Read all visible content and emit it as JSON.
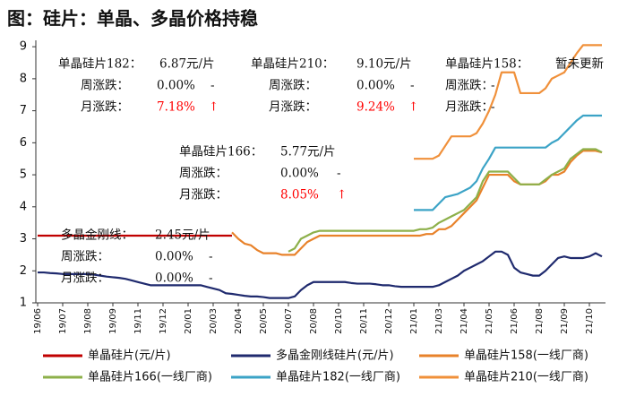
{
  "chart_data": {
    "type": "line",
    "title": "图：硅片：单晶、多晶价格持稳",
    "categories": [
      "19/06",
      null,
      null,
      null,
      "19/07",
      null,
      null,
      null,
      "19/08",
      null,
      null,
      null,
      "19/09",
      null,
      null,
      null,
      "19/11",
      null,
      null,
      null,
      "19/12",
      null,
      null,
      null,
      "20/01",
      null,
      null,
      null,
      "20/03",
      null,
      null,
      null,
      "20/04",
      null,
      null,
      null,
      "20/05",
      null,
      null,
      null,
      "20/07",
      null,
      null,
      null,
      "20/08",
      null,
      null,
      null,
      "20/10",
      null,
      null,
      null,
      "20/11",
      null,
      null,
      null,
      "20/12",
      null,
      null,
      null,
      "21/01",
      null,
      null,
      null,
      "21/03",
      null,
      null,
      null,
      "21/04",
      null,
      null,
      null,
      "21/05",
      null,
      null,
      null,
      "21/06",
      null,
      null,
      null,
      "21/08",
      null,
      null,
      null,
      "21/09",
      null,
      null,
      null,
      "21/10",
      null,
      null
    ],
    "ylim": [
      1,
      9.2
    ],
    "yticks": [
      1,
      2,
      3,
      4,
      5,
      6,
      7,
      8,
      9
    ],
    "series": [
      {
        "name": "单晶硅片(元/片)",
        "color": "#c00000",
        "values": [
          3.1,
          3.1,
          3.1,
          3.1,
          3.1,
          3.1,
          3.1,
          3.1,
          3.1,
          3.1,
          3.1,
          3.1,
          3.1,
          3.1,
          3.1,
          3.1,
          3.1,
          3.1,
          3.1,
          3.1,
          3.1,
          3.1,
          3.1,
          3.1,
          3.1,
          3.1,
          3.1,
          3.1,
          3.1,
          3.1,
          3.1,
          3.1,
          null,
          null,
          null,
          null,
          null,
          null,
          null,
          null,
          null,
          null,
          null,
          null,
          null,
          null,
          null,
          null,
          null,
          null,
          null,
          null,
          null,
          null,
          null,
          null,
          null,
          null,
          null,
          null,
          null,
          null,
          null,
          null,
          null,
          null,
          null,
          null,
          null,
          null,
          null,
          null,
          null,
          null,
          null,
          null,
          null,
          null,
          null,
          null,
          null,
          null,
          null,
          null,
          null,
          null,
          null,
          null,
          null,
          null,
          null
        ]
      },
      {
        "name": "多晶金刚线硅片(元/片)",
        "color": "#1f2a6e",
        "values": [
          1.95,
          1.95,
          1.93,
          1.92,
          1.9,
          1.9,
          1.9,
          1.9,
          1.9,
          1.88,
          1.85,
          1.82,
          1.8,
          1.78,
          1.75,
          1.7,
          1.65,
          1.6,
          1.55,
          1.55,
          1.55,
          1.55,
          1.55,
          1.55,
          1.55,
          1.55,
          1.55,
          1.5,
          1.45,
          1.4,
          1.3,
          1.28,
          1.25,
          1.22,
          1.2,
          1.2,
          1.18,
          1.15,
          1.15,
          1.15,
          1.15,
          1.2,
          1.4,
          1.55,
          1.65,
          1.65,
          1.65,
          1.65,
          1.65,
          1.65,
          1.62,
          1.6,
          1.6,
          1.6,
          1.58,
          1.55,
          1.55,
          1.52,
          1.5,
          1.5,
          1.5,
          1.5,
          1.5,
          1.5,
          1.55,
          1.65,
          1.75,
          1.85,
          2.0,
          2.1,
          2.2,
          2.3,
          2.45,
          2.6,
          2.6,
          2.5,
          2.1,
          1.95,
          1.9,
          1.85,
          1.85,
          2.0,
          2.2,
          2.4,
          2.45,
          2.4,
          2.4,
          2.4,
          2.45,
          2.55,
          2.45
        ]
      },
      {
        "name": "单晶硅片158(一线厂商)",
        "color": "#e8822a",
        "values": [
          null,
          null,
          null,
          null,
          null,
          null,
          null,
          null,
          null,
          null,
          null,
          null,
          null,
          null,
          null,
          null,
          null,
          null,
          null,
          null,
          null,
          null,
          null,
          null,
          null,
          null,
          null,
          null,
          null,
          null,
          null,
          3.2,
          3.0,
          2.85,
          2.8,
          2.65,
          2.55,
          2.55,
          2.55,
          2.5,
          2.5,
          2.5,
          2.7,
          2.9,
          3.0,
          3.1,
          3.1,
          3.1,
          3.1,
          3.1,
          3.1,
          3.1,
          3.1,
          3.1,
          3.1,
          3.1,
          3.1,
          3.1,
          3.1,
          3.1,
          3.1,
          3.1,
          3.15,
          3.15,
          3.3,
          3.3,
          3.4,
          3.6,
          3.8,
          4.0,
          4.2,
          4.6,
          5.0,
          5.0,
          5.0,
          5.0,
          4.8,
          4.7,
          4.7,
          4.7,
          4.7,
          4.8,
          5.0,
          5.0,
          5.1,
          5.4,
          5.6,
          5.75,
          5.75,
          5.75,
          5.7
        ]
      },
      {
        "name": "单晶硅片166(一线厂商)",
        "color": "#8db04a",
        "values": [
          null,
          null,
          null,
          null,
          null,
          null,
          null,
          null,
          null,
          null,
          null,
          null,
          null,
          null,
          null,
          null,
          null,
          null,
          null,
          null,
          null,
          null,
          null,
          null,
          null,
          null,
          null,
          null,
          null,
          null,
          null,
          null,
          null,
          null,
          null,
          null,
          null,
          null,
          null,
          null,
          2.6,
          2.7,
          3.0,
          3.1,
          3.2,
          3.25,
          3.25,
          3.25,
          3.25,
          3.25,
          3.25,
          3.25,
          3.25,
          3.25,
          3.25,
          3.25,
          3.25,
          3.25,
          3.25,
          3.25,
          3.25,
          3.3,
          3.3,
          3.35,
          3.5,
          3.6,
          3.7,
          3.8,
          3.9,
          4.1,
          4.3,
          4.8,
          5.1,
          5.1,
          5.1,
          5.1,
          4.9,
          4.7,
          4.7,
          4.7,
          4.7,
          4.85,
          5.0,
          5.1,
          5.2,
          5.5,
          5.65,
          5.8,
          5.8,
          5.8,
          5.7
        ]
      },
      {
        "name": "单晶硅片182(一线厂商)",
        "color": "#3ba3c6",
        "values": [
          null,
          null,
          null,
          null,
          null,
          null,
          null,
          null,
          null,
          null,
          null,
          null,
          null,
          null,
          null,
          null,
          null,
          null,
          null,
          null,
          null,
          null,
          null,
          null,
          null,
          null,
          null,
          null,
          null,
          null,
          null,
          null,
          null,
          null,
          null,
          null,
          null,
          null,
          null,
          null,
          null,
          null,
          null,
          null,
          null,
          null,
          null,
          null,
          null,
          null,
          null,
          null,
          null,
          null,
          null,
          null,
          null,
          null,
          null,
          null,
          3.9,
          3.9,
          3.9,
          3.9,
          4.1,
          4.3,
          4.35,
          4.4,
          4.5,
          4.6,
          4.8,
          5.2,
          5.5,
          5.85,
          5.85,
          5.85,
          5.85,
          5.85,
          5.85,
          5.85,
          5.85,
          5.85,
          6.0,
          6.1,
          6.3,
          6.5,
          6.7,
          6.85,
          6.85,
          6.85,
          6.85
        ]
      },
      {
        "name": "单晶硅片210(一线厂商)",
        "color": "#f0903a",
        "values": [
          null,
          null,
          null,
          null,
          null,
          null,
          null,
          null,
          null,
          null,
          null,
          null,
          null,
          null,
          null,
          null,
          null,
          null,
          null,
          null,
          null,
          null,
          null,
          null,
          null,
          null,
          null,
          null,
          null,
          null,
          null,
          null,
          null,
          null,
          null,
          null,
          null,
          null,
          null,
          null,
          null,
          null,
          null,
          null,
          null,
          null,
          null,
          null,
          null,
          null,
          null,
          null,
          null,
          null,
          null,
          null,
          null,
          null,
          null,
          null,
          5.5,
          5.5,
          5.5,
          5.5,
          5.6,
          5.9,
          6.2,
          6.2,
          6.2,
          6.2,
          6.3,
          6.6,
          7.0,
          7.5,
          8.2,
          8.2,
          8.2,
          7.55,
          7.55,
          7.55,
          7.55,
          7.7,
          8.0,
          8.1,
          8.2,
          8.5,
          8.8,
          9.05,
          9.05,
          9.05,
          9.05
        ]
      }
    ],
    "annotations": [
      {
        "rows": [
          [
            "单晶硅片182：",
            "6.87元/片"
          ],
          [
            "周涨跌：",
            "0.00%",
            "-"
          ],
          [
            "月涨跌：",
            "7.18%",
            "↑"
          ]
        ]
      },
      {
        "rows": [
          [
            "单晶硅片210：",
            "9.10元/片"
          ],
          [
            "周涨跌：",
            "0.00%",
            "-"
          ],
          [
            "月涨跌：",
            "9.24%",
            "↑"
          ]
        ]
      },
      {
        "rows": [
          [
            "单晶硅片158：",
            "暂未更新"
          ],
          [
            "周涨跌：",
            "-"
          ],
          [
            "月涨跌：",
            "-"
          ]
        ]
      },
      {
        "rows": [
          [
            "单晶硅片166：",
            "5.77元/片"
          ],
          [
            "周涨跌：",
            "0.00%",
            "-"
          ],
          [
            "月涨跌：",
            "8.05%",
            "↑"
          ]
        ]
      },
      {
        "rows": [
          [
            "多晶金刚线：",
            "2.45元/片"
          ],
          [
            "周涨跌：",
            "0.00%",
            "-"
          ],
          [
            "月涨跌：",
            "0.00%",
            "-"
          ]
        ]
      }
    ]
  }
}
